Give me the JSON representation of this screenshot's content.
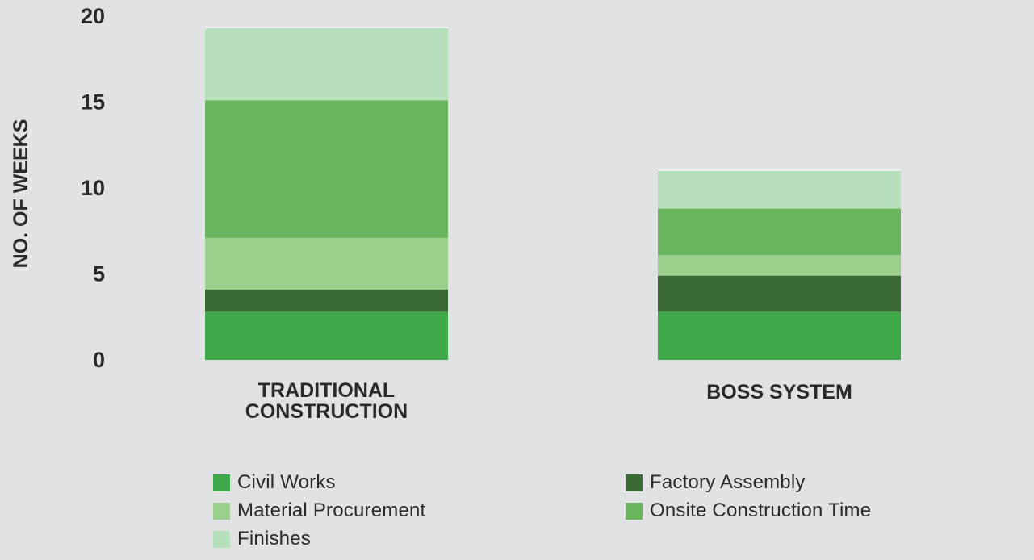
{
  "chart_data": {
    "type": "bar",
    "stacked": true,
    "title": "",
    "xlabel": "",
    "ylabel": "NO. OF WEEKS",
    "ylim": [
      0,
      20
    ],
    "yticks": [
      "0",
      "5",
      "10",
      "15",
      "20"
    ],
    "grid": false,
    "legend_position": "bottom",
    "categories": [
      [
        "TRADITIONAL",
        "CONSTRUCTION"
      ],
      [
        "BOSS SYSTEM"
      ]
    ],
    "series": [
      {
        "name": "Civil Works",
        "color": "#3fa848",
        "values": [
          2.8,
          2.8
        ]
      },
      {
        "name": "Factory Assembly",
        "color": "#3a6b35",
        "values": [
          1.3,
          2.1
        ]
      },
      {
        "name": "Material Procurement",
        "color": "#9bcf8c",
        "values": [
          3.0,
          1.2
        ]
      },
      {
        "name": "Onsite Construction Time",
        "color": "#6ab65e",
        "values": [
          8.0,
          2.7
        ]
      },
      {
        "name": "Finishes",
        "color": "#b6dfbb",
        "values": [
          4.2,
          2.2
        ]
      }
    ]
  },
  "legend": {
    "items": [
      {
        "label": "Civil Works",
        "color": "#3fa848"
      },
      {
        "label": "Factory Assembly",
        "color": "#3a6b35"
      },
      {
        "label": "Material Procurement",
        "color": "#9bcf8c"
      },
      {
        "label": "Onsite Construction Time",
        "color": "#6ab65e"
      },
      {
        "label": "Finishes",
        "color": "#b6dfbb"
      }
    ]
  }
}
